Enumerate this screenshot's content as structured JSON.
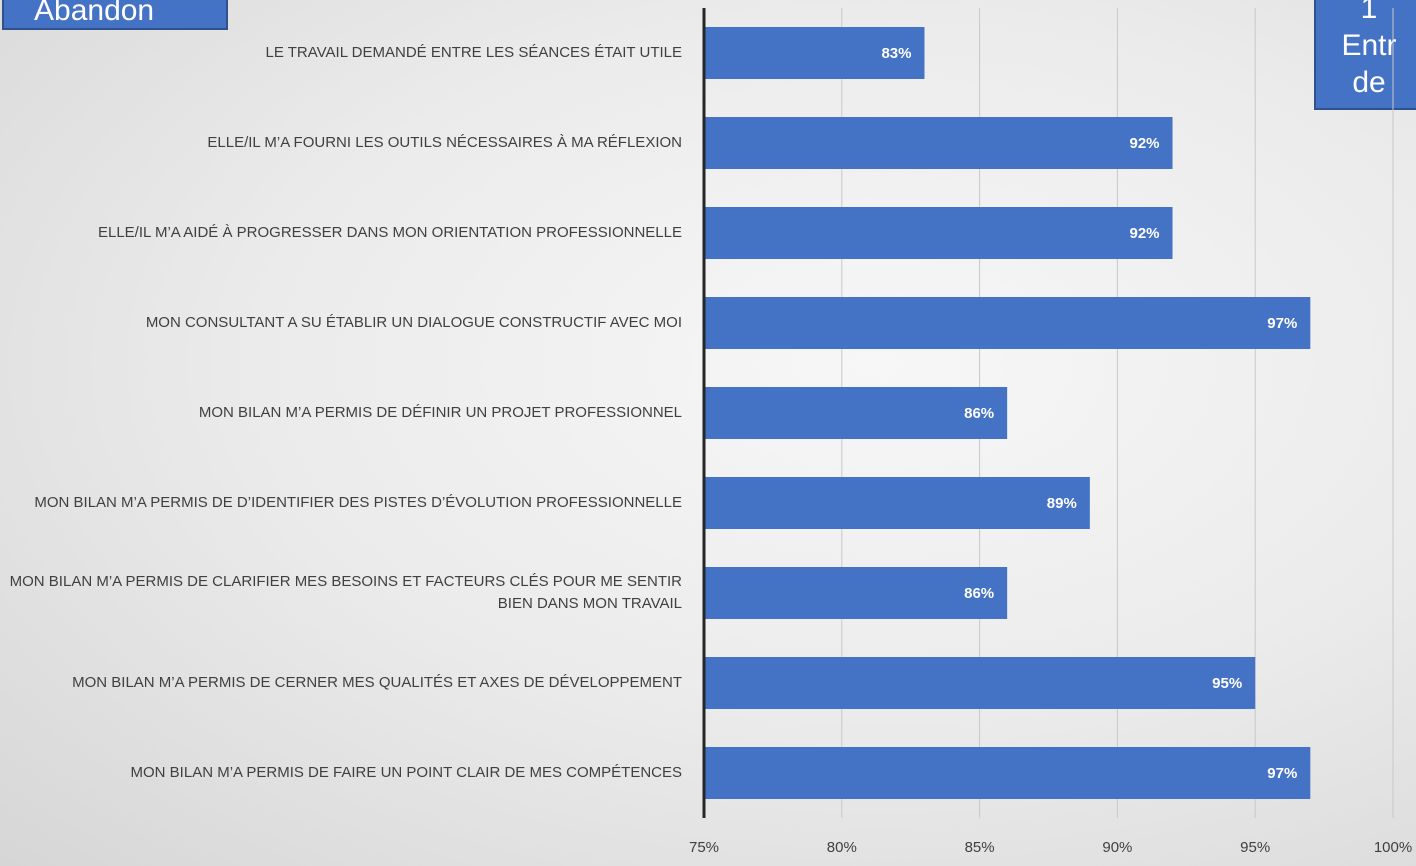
{
  "badges": {
    "left": "Abandon",
    "right_lines": [
      "1",
      "Entr",
      "de"
    ]
  },
  "colors": {
    "bar": "#4472c4",
    "bar_label": "#ffffff",
    "gridline": "#c8c8c8",
    "axis": "#262626",
    "text": "#404040"
  },
  "chart_data": {
    "type": "bar",
    "orientation": "horizontal",
    "title": "",
    "xlabel": "",
    "ylabel": "",
    "xlim": [
      75,
      100
    ],
    "x_ticks": [
      75,
      80,
      85,
      90,
      95,
      100
    ],
    "x_tick_labels": [
      "75%",
      "80%",
      "85%",
      "90%",
      "95%",
      "100%"
    ],
    "grid": "vertical",
    "categories": [
      "Le travail demandé entre les séances était utile",
      "Elle/il m’a fourni les outils nécessaires à ma réflexion",
      "Elle/il m’a aidé à progresser dans mon orientation professionnelle",
      "Mon consultant a su établir un dialogue constructif avec moi",
      "Mon bilan m’a permis de définir un projet professionnel",
      "Mon bilan m’a permis de d’identifier des pistes d’évolution professionnelle",
      "Mon bilan m’a permis de clarifier mes besoins et facteurs clés pour me sentir bien dans mon travail",
      "Mon bilan m’a permis de cerner mes qualités et axes de développement",
      "Mon bilan m’a permis de faire un point clair de mes compétences"
    ],
    "values": [
      83,
      92,
      92,
      97,
      86,
      89,
      86,
      95,
      97
    ],
    "data_labels": [
      "83%",
      "92%",
      "92%",
      "97%",
      "86%",
      "89%",
      "86%",
      "95%",
      "97%"
    ]
  }
}
